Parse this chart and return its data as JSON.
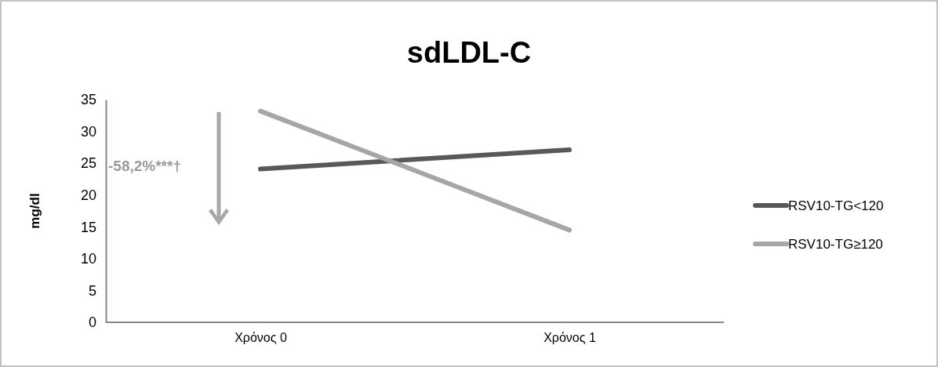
{
  "chart_data": {
    "type": "line",
    "title": "sdLDL-C",
    "ylabel": "mg/dl",
    "categories": [
      "Χρόνος 0",
      "Χρόνος 1"
    ],
    "series": [
      {
        "name": "RSV10-TG<120",
        "color": "#595959",
        "values": [
          24.1,
          27.1
        ]
      },
      {
        "name": "RSV10-TG≥120",
        "color": "#a6a6a6",
        "values": [
          33.2,
          14.5
        ]
      }
    ],
    "ylim": [
      0,
      35
    ],
    "yticks": [
      0,
      5,
      10,
      15,
      20,
      25,
      30,
      35
    ],
    "grid": false,
    "legend": "right",
    "marker": "none",
    "line_style": "solid",
    "annotations": [
      "-58,2%***†"
    ]
  }
}
